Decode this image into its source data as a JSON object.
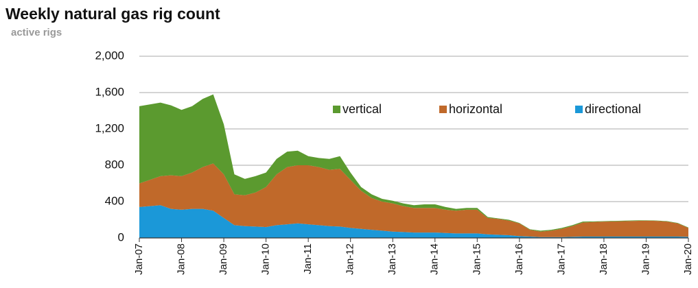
{
  "chart_data": {
    "type": "stacked_area",
    "title": "Weekly natural gas rig count",
    "subtitle": "active rigs",
    "x": [
      2007,
      2007.25,
      2007.5,
      2007.75,
      2008,
      2008.25,
      2008.5,
      2008.75,
      2009,
      2009.25,
      2009.5,
      2009.75,
      2010,
      2010.25,
      2010.5,
      2010.75,
      2011,
      2011.25,
      2011.5,
      2011.75,
      2012,
      2012.25,
      2012.5,
      2012.75,
      2013,
      2013.25,
      2013.5,
      2013.75,
      2014,
      2014.25,
      2014.5,
      2014.75,
      2015,
      2015.25,
      2015.5,
      2015.75,
      2016,
      2016.25,
      2016.5,
      2016.75,
      2017,
      2017.25,
      2017.5,
      2017.75,
      2018,
      2018.25,
      2018.5,
      2018.75,
      2019,
      2019.25,
      2019.5,
      2019.75,
      2020
    ],
    "series": [
      {
        "name": "vertical",
        "color": "#5b9a2f",
        "values": [
          850,
          830,
          810,
          770,
          730,
          730,
          750,
          760,
          550,
          220,
          180,
          180,
          160,
          170,
          170,
          160,
          100,
          100,
          120,
          140,
          80,
          40,
          40,
          30,
          30,
          30,
          30,
          40,
          40,
          30,
          20,
          20,
          20,
          10,
          5,
          10,
          5,
          5,
          10,
          10,
          10,
          10,
          10,
          7,
          5,
          6,
          5,
          5,
          5,
          4,
          5,
          5,
          5
        ]
      },
      {
        "name": "horizontal",
        "color": "#c0692a",
        "values": [
          260,
          290,
          320,
          370,
          370,
          400,
          460,
          520,
          480,
          340,
          340,
          375,
          440,
          560,
          630,
          640,
          650,
          640,
          620,
          635,
          530,
          420,
          350,
          320,
          310,
          285,
          270,
          270,
          270,
          255,
          250,
          260,
          260,
          180,
          175,
          160,
          140,
          75,
          60,
          70,
          90,
          118,
          155,
          160,
          165,
          167,
          170,
          173,
          175,
          173,
          165,
          145,
          98
        ]
      },
      {
        "name": "directional",
        "color": "#1b98d8",
        "values": [
          340,
          350,
          360,
          320,
          310,
          320,
          320,
          300,
          220,
          140,
          130,
          125,
          120,
          140,
          150,
          160,
          150,
          140,
          130,
          125,
          110,
          100,
          90,
          80,
          70,
          65,
          60,
          60,
          60,
          55,
          50,
          50,
          50,
          40,
          35,
          30,
          20,
          15,
          10,
          10,
          10,
          12,
          15,
          15,
          15,
          15,
          15,
          15,
          15,
          15,
          15,
          15,
          12
        ]
      }
    ],
    "xlim": [
      2007,
      2020
    ],
    "xticks": [
      {
        "value": 2007,
        "label": "Jan-07"
      },
      {
        "value": 2008,
        "label": "Jan-08"
      },
      {
        "value": 2009,
        "label": "Jan-09"
      },
      {
        "value": 2010,
        "label": "Jan-10"
      },
      {
        "value": 2011,
        "label": "Jan-11"
      },
      {
        "value": 2012,
        "label": "Jan-12"
      },
      {
        "value": 2013,
        "label": "Jan-13"
      },
      {
        "value": 2014,
        "label": "Jan-14"
      },
      {
        "value": 2015,
        "label": "Jan-15"
      },
      {
        "value": 2016,
        "label": "Jan-16"
      },
      {
        "value": 2017,
        "label": "Jan-17"
      },
      {
        "value": 2018,
        "label": "Jan-18"
      },
      {
        "value": 2019,
        "label": "Jan-19"
      },
      {
        "value": 2020,
        "label": "Jan-20"
      }
    ],
    "ylim": [
      0,
      2000
    ],
    "yticks": [
      0,
      400,
      800,
      {
        "value": 1200,
        "label": "1,200"
      },
      {
        "value": 1600,
        "label": "1,600"
      },
      {
        "value": 2000,
        "label": "2,000"
      }
    ],
    "grid": true,
    "legend": "top-right"
  }
}
